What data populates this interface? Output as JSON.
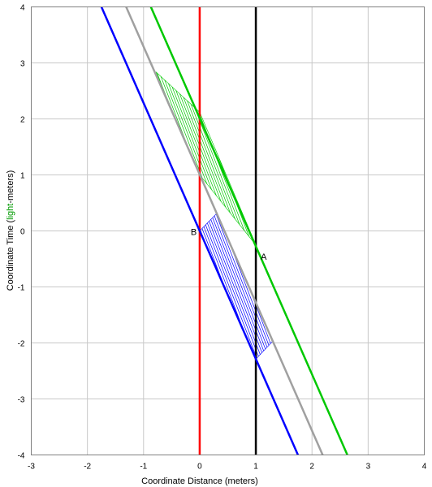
{
  "chart_data": {
    "type": "line",
    "xlabel": "Coordinate Distance (meters)",
    "ylabel_parts": [
      "Coordinate Time (",
      "light",
      "-meters)"
    ],
    "xlim": [
      -3,
      4
    ],
    "ylim": [
      -4,
      4
    ],
    "x_ticks": [
      -3,
      -2,
      -1,
      0,
      1,
      2,
      3,
      4
    ],
    "y_ticks": [
      -4,
      -3,
      -2,
      -1,
      0,
      1,
      2,
      3,
      4
    ],
    "grid": true,
    "colors": {
      "grid": "#c8c8c8",
      "red": "#ff0000",
      "black": "#000000",
      "blue": "#0000ff",
      "green": "#00c800",
      "gray": "#a0a0a0",
      "ylabel_accent": "#009900"
    },
    "series": [
      {
        "color": "red",
        "x": [
          0,
          0
        ],
        "y": [
          -4,
          4
        ]
      },
      {
        "color": "black",
        "x": [
          1,
          1
        ],
        "y": [
          -4,
          4
        ]
      },
      {
        "color": "blue",
        "x": [
          -1.75,
          1.75
        ],
        "y": [
          4,
          -4
        ]
      },
      {
        "color": "gray",
        "x": [
          -1.31,
          2.19
        ],
        "y": [
          4,
          -4
        ]
      },
      {
        "color": "green",
        "x": [
          -0.87,
          2.63
        ],
        "y": [
          4,
          -4
        ]
      }
    ],
    "hatched_regions": [
      {
        "color": "green",
        "vertices": [
          [
            -0.78,
            2.84
          ],
          [
            0,
            2.12
          ],
          [
            1,
            -0.25
          ],
          [
            0,
            1.0
          ]
        ]
      },
      {
        "color": "blue",
        "vertices": [
          [
            0,
            0
          ],
          [
            0.3,
            0.31
          ],
          [
            1.3,
            -1.97
          ],
          [
            1,
            -2.29
          ]
        ]
      }
    ],
    "points": [
      {
        "label": "A",
        "x": 1,
        "y": -0.25
      },
      {
        "label": "B",
        "x": 0,
        "y": 0
      }
    ]
  }
}
